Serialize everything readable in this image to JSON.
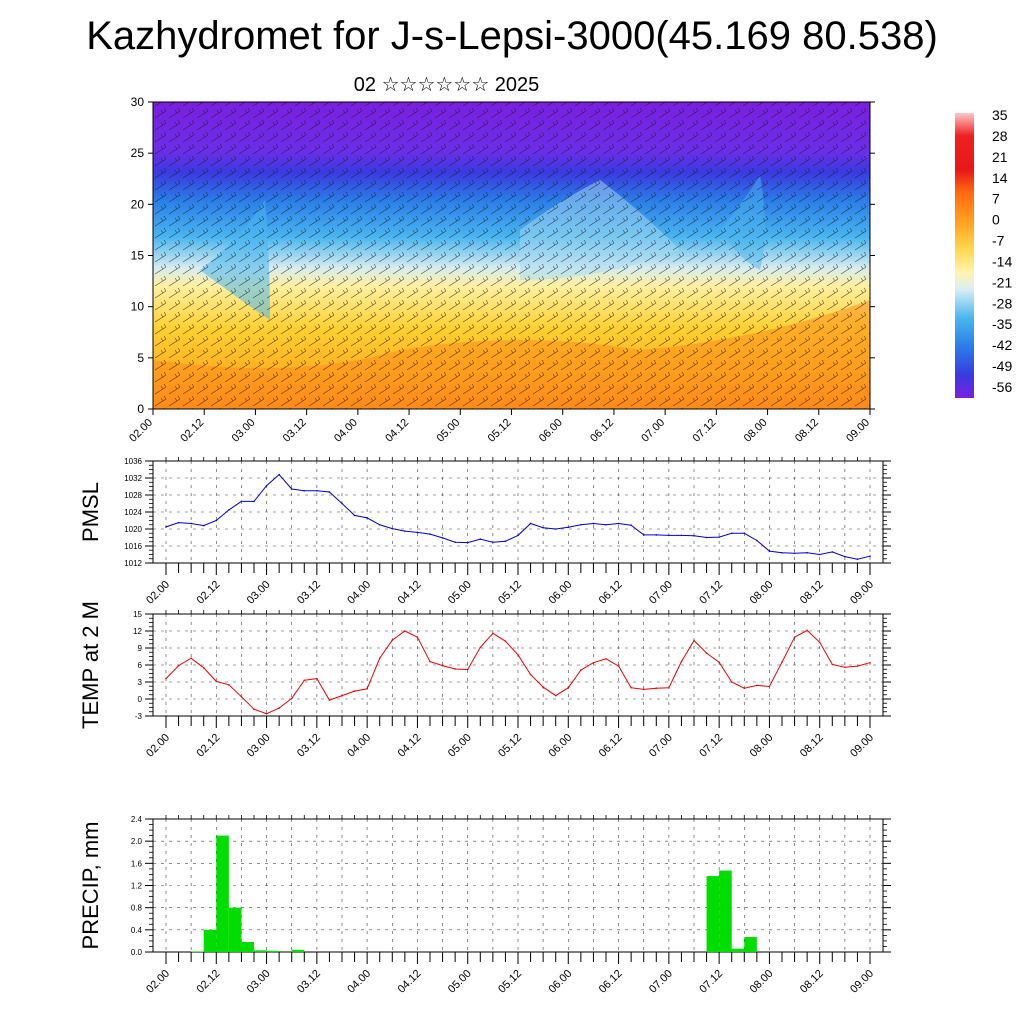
{
  "title": "Kazhydromet for J-s-Lepsi-3000(45.169 80.538)",
  "subtitle": "02 ☆☆☆☆☆☆ 2025",
  "time_labels": [
    "02.00",
    "02.12",
    "03.00",
    "03.12",
    "04.00",
    "04.12",
    "05.00",
    "05.12",
    "06.00",
    "06.12",
    "07.00",
    "07.12",
    "08.00",
    "08.12",
    "09.00"
  ],
  "colors": {
    "pmsl_line": "#0000dd",
    "temp_line": "#ee0000",
    "precip_bar": "#00dd00",
    "cross_section_scale": [
      "#7a1fe0",
      "#3a3ae0",
      "#2a7de8",
      "#49b6f0",
      "#bfe4f0",
      "#fff0a0",
      "#ffd030",
      "#ffa020",
      "#ff7010",
      "#ee2a10",
      "#ffb0b0"
    ]
  },
  "chart_data": [
    {
      "type": "heatmap",
      "panel": "cross-section",
      "xlabel": "",
      "ylabel": "",
      "ylim": [
        0,
        30
      ],
      "yticks": [
        0,
        5,
        10,
        15,
        20,
        25,
        30
      ],
      "colorbar_labels": [
        "35",
        "28",
        "21",
        "14",
        "7",
        "0",
        "-7",
        "-14",
        "-21",
        "-28",
        "-35",
        "-42",
        "-49",
        "-56"
      ],
      "overlay": "wind barbs"
    },
    {
      "type": "line",
      "panel": "pmsl",
      "ylabel": "PMSL",
      "ylim": [
        1012,
        1036
      ],
      "yticks": [
        1012,
        1016,
        1020,
        1024,
        1028,
        1032,
        1036
      ],
      "x_hours": [
        0,
        3,
        6,
        9,
        12,
        15,
        18,
        21,
        24,
        27,
        30,
        33,
        36,
        39,
        42,
        45,
        48,
        51,
        54,
        57,
        60,
        63,
        66,
        69,
        72,
        75,
        78,
        81,
        84,
        87,
        90,
        93,
        96,
        99,
        102,
        105,
        108,
        111,
        114,
        117,
        120,
        123,
        126,
        129,
        132,
        135,
        138,
        141,
        144,
        147,
        150,
        153,
        156,
        159,
        162,
        165,
        168
      ],
      "values": [
        1020.5,
        1021.5,
        1021.3,
        1020.8,
        1022,
        1024.5,
        1026.5,
        1026.5,
        1030.2,
        1032.8,
        1029.4,
        1029,
        1029,
        1028.7,
        1026,
        1023.2,
        1022.6,
        1021,
        1020.1,
        1019.5,
        1019.2,
        1018.8,
        1017.9,
        1016.9,
        1016.8,
        1017.6,
        1016.9,
        1017.1,
        1018.5,
        1021.3,
        1020.3,
        1020,
        1020.4,
        1021,
        1021.3,
        1021,
        1021.3,
        1020.9,
        1018.6,
        1018.6,
        1018.5,
        1018.5,
        1018.4,
        1018,
        1018.1,
        1019,
        1019,
        1017.3,
        1014.8,
        1014.4,
        1014.3,
        1014.4,
        1014,
        1014.6,
        1013.5,
        1012.9,
        1013.6
      ]
    },
    {
      "type": "line",
      "panel": "temp",
      "ylabel": "TEMP at 2 M",
      "ylim": [
        -3,
        15
      ],
      "yticks": [
        -3,
        0,
        3,
        6,
        9,
        12,
        15
      ],
      "x_hours": [
        0,
        3,
        6,
        9,
        12,
        15,
        18,
        21,
        24,
        27,
        30,
        33,
        36,
        39,
        42,
        45,
        48,
        51,
        54,
        57,
        60,
        63,
        66,
        69,
        72,
        75,
        78,
        81,
        84,
        87,
        90,
        93,
        96,
        99,
        102,
        105,
        108,
        111,
        114,
        117,
        120,
        123,
        126,
        129,
        132,
        135,
        138,
        141,
        144,
        147,
        150,
        153,
        156,
        159,
        162,
        165,
        168
      ],
      "values": [
        3.6,
        5.9,
        7.2,
        5.5,
        3.1,
        2.5,
        0.4,
        -1.8,
        -2.6,
        -1.6,
        0.1,
        3.3,
        3.6,
        -0.2,
        0.6,
        1.4,
        1.8,
        7.2,
        10.4,
        12,
        10.9,
        6.6,
        5.9,
        5.3,
        5.2,
        9.1,
        11.6,
        10.2,
        7.8,
        4.3,
        2.1,
        0.6,
        2,
        5.1,
        6.4,
        7.1,
        5.8,
        2,
        1.7,
        1.9,
        2,
        6.6,
        10.3,
        8.1,
        6.5,
        3,
        1.9,
        2.4,
        2.2,
        6.5,
        10.9,
        12.1,
        10,
        6.1,
        5.6,
        5.8,
        6.4
      ]
    },
    {
      "type": "bar",
      "panel": "precip",
      "ylabel": "PRECIP, mm",
      "ylim": [
        0,
        2.4
      ],
      "yticks": [
        "0.0",
        "0.4",
        "0.8",
        "1.2",
        "1.6",
        "2.0",
        "2.4"
      ],
      "bar_width_hours": 3,
      "bars": [
        {
          "start_hour": 6,
          "value": 0.01
        },
        {
          "start_hour": 9,
          "value": 0.4
        },
        {
          "start_hour": 12,
          "value": 2.1
        },
        {
          "start_hour": 15,
          "value": 0.8
        },
        {
          "start_hour": 18,
          "value": 0.18
        },
        {
          "start_hour": 21,
          "value": 0.03
        },
        {
          "start_hour": 24,
          "value": 0.02
        },
        {
          "start_hour": 30,
          "value": 0.04
        },
        {
          "start_hour": 129,
          "value": 1.37
        },
        {
          "start_hour": 132,
          "value": 1.47
        },
        {
          "start_hour": 135,
          "value": 0.06
        },
        {
          "start_hour": 138,
          "value": 0.27
        }
      ]
    }
  ]
}
